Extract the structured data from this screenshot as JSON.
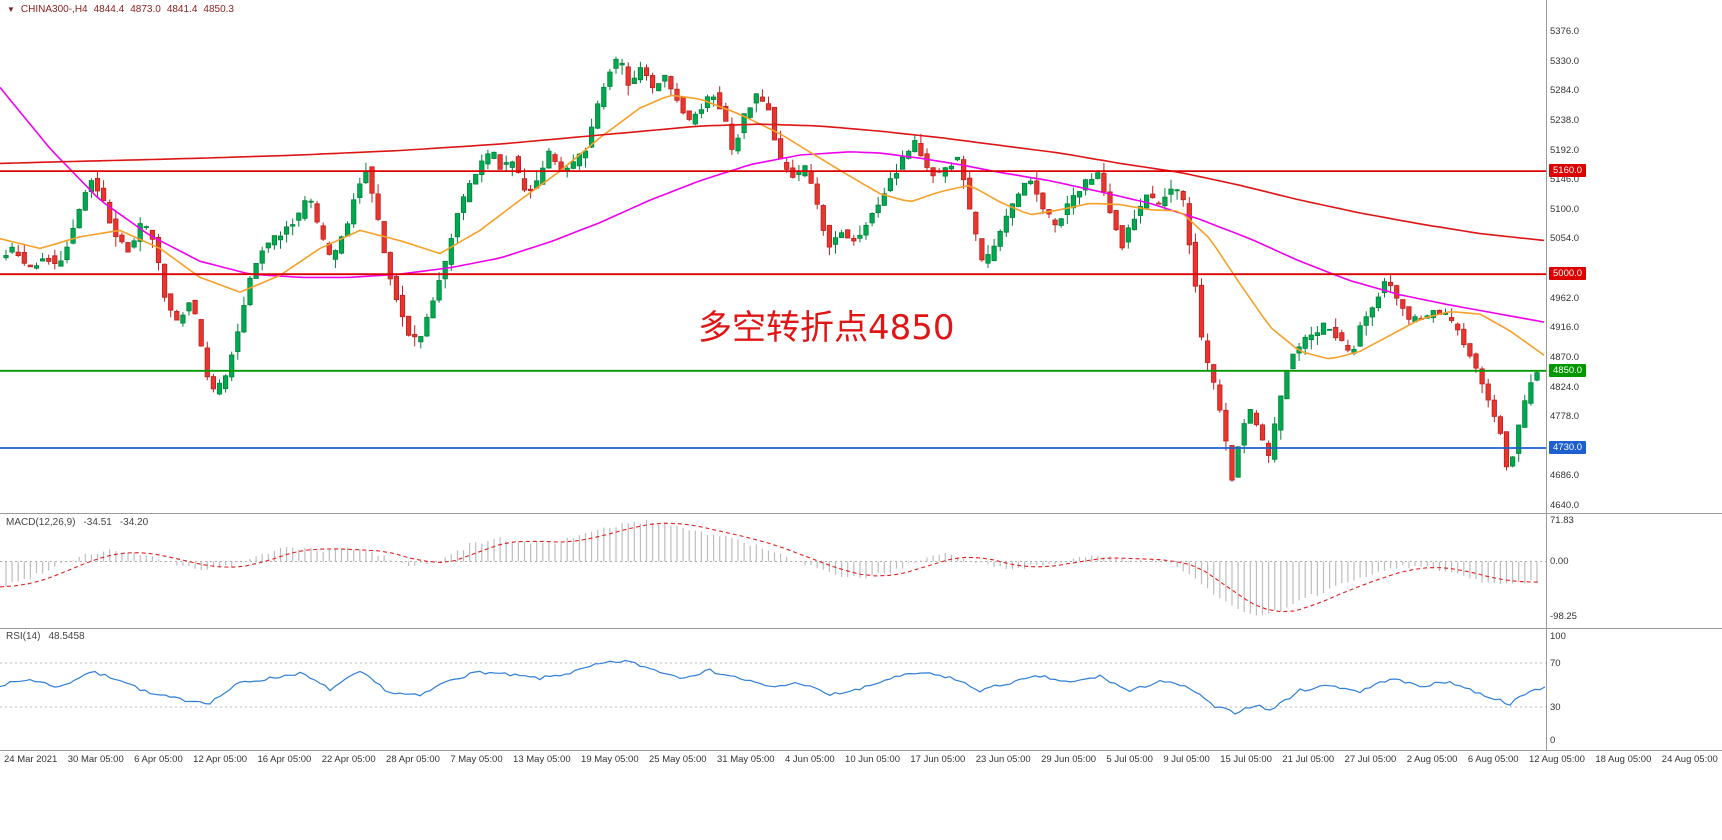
{
  "symbol_bar": {
    "dropdown_icon": "▼",
    "symbol": "CHINA300-,H4",
    "open": "4844.4",
    "high": "4873.0",
    "low": "4841.4",
    "close": "4850.3"
  },
  "annotation": {
    "text": "多空转折点4850",
    "color": "#e01515"
  },
  "price_axis": {
    "min": 4640,
    "max": 5376,
    "labels": [
      "5376.0",
      "5330.0",
      "5284.0",
      "5238.0",
      "5192.0",
      "5146.0",
      "5100.0",
      "5054.0",
      "4962.0",
      "4916.0",
      "4870.0",
      "4824.0",
      "4778.0",
      "4686.0",
      "4640.0"
    ]
  },
  "levels": [
    {
      "label": "5160.0",
      "value": 5160,
      "color": "#dd0000"
    },
    {
      "label": "5000.0",
      "value": 5000,
      "color": "#dd0000"
    },
    {
      "label": "4850.0",
      "value": 4850,
      "color": "#009a00"
    },
    {
      "label": "4730.0",
      "value": 4730,
      "color": "#1e5fd0"
    }
  ],
  "time_axis": {
    "labels": [
      "24 Mar 2021",
      "30 Mar 05:00",
      "6 Apr 05:00",
      "12 Apr 05:00",
      "16 Apr 05:00",
      "22 Apr 05:00",
      "28 Apr 05:00",
      "7 May 05:00",
      "13 May 05:00",
      "19 May 05:00",
      "25 May 05:00",
      "31 May 05:00",
      "4 Jun 05:00",
      "10 Jun 05:00",
      "17 Jun 05:00",
      "23 Jun 05:00",
      "29 Jun 05:00",
      "5 Jul 05:00",
      "9 Jul 05:00",
      "15 Jul 05:00",
      "21 Jul 05:00",
      "27 Jul 05:00",
      "2 Aug 05:00",
      "6 Aug 05:00",
      "12 Aug 05:00",
      "18 Aug 05:00",
      "24 Aug 05:00"
    ]
  },
  "indicators": {
    "macd": {
      "name": "MACD(12,26,9)",
      "value_main": "-34.51",
      "value_signal": "-34.20",
      "range": {
        "max": 71.83,
        "min": -98.25
      },
      "axis_labels": [
        {
          "text": "71.83",
          "value": 71.83
        },
        {
          "text": "0.00",
          "value": 0
        },
        {
          "text": "-98.25",
          "value": -98.25
        }
      ]
    },
    "rsi": {
      "name": "RSI(14)",
      "value": "48.5458",
      "range": {
        "max": 100,
        "min": 0
      },
      "level_lines": [
        70,
        30
      ],
      "axis_labels": [
        {
          "text": "100",
          "value": 100
        },
        {
          "text": "70",
          "value": 70
        },
        {
          "text": "30",
          "value": 30
        },
        {
          "text": "0",
          "value": 0
        }
      ]
    }
  },
  "chart_data": {
    "type": "candlestick",
    "title": "CHINA300-,H4",
    "timeframe": "H4",
    "ylim": [
      4640,
      5376
    ],
    "grid": false,
    "colors": {
      "up": "#00a84f",
      "up_stroke": "#00823b",
      "down": "#e8352e",
      "down_stroke": "#bf1f1f",
      "macd_hist": "#bdbdbd",
      "macd_signal": "#e02020",
      "rsi_line": "#2f7ed8"
    },
    "price_path": [
      [
        0,
        5020
      ],
      [
        18,
        5040
      ],
      [
        32,
        5005
      ],
      [
        48,
        5030
      ],
      [
        62,
        5010
      ],
      [
        78,
        5080
      ],
      [
        92,
        5150
      ],
      [
        104,
        5120
      ],
      [
        118,
        5060
      ],
      [
        132,
        5035
      ],
      [
        145,
        5085
      ],
      [
        158,
        5045
      ],
      [
        170,
        4950
      ],
      [
        182,
        4925
      ],
      [
        194,
        4965
      ],
      [
        205,
        4880
      ],
      [
        215,
        4815
      ],
      [
        228,
        4835
      ],
      [
        240,
        4905
      ],
      [
        252,
        4990
      ],
      [
        265,
        5040
      ],
      [
        278,
        5055
      ],
      [
        290,
        5075
      ],
      [
        302,
        5090
      ],
      [
        312,
        5125
      ],
      [
        322,
        5070
      ],
      [
        334,
        5020
      ],
      [
        348,
        5070
      ],
      [
        360,
        5130
      ],
      [
        368,
        5170
      ],
      [
        378,
        5105
      ],
      [
        390,
        5010
      ],
      [
        402,
        4950
      ],
      [
        412,
        4905
      ],
      [
        422,
        4895
      ],
      [
        435,
        4955
      ],
      [
        448,
        5015
      ],
      [
        460,
        5095
      ],
      [
        472,
        5135
      ],
      [
        484,
        5175
      ],
      [
        495,
        5190
      ],
      [
        505,
        5160
      ],
      [
        515,
        5180
      ],
      [
        528,
        5125
      ],
      [
        540,
        5140
      ],
      [
        552,
        5190
      ],
      [
        565,
        5160
      ],
      [
        578,
        5175
      ],
      [
        590,
        5195
      ],
      [
        602,
        5270
      ],
      [
        612,
        5315
      ],
      [
        622,
        5335
      ],
      [
        632,
        5295
      ],
      [
        645,
        5320
      ],
      [
        655,
        5285
      ],
      [
        668,
        5310
      ],
      [
        680,
        5270
      ],
      [
        692,
        5235
      ],
      [
        705,
        5260
      ],
      [
        715,
        5285
      ],
      [
        725,
        5255
      ],
      [
        736,
        5190
      ],
      [
        748,
        5250
      ],
      [
        760,
        5280
      ],
      [
        772,
        5255
      ],
      [
        782,
        5180
      ],
      [
        795,
        5150
      ],
      [
        808,
        5165
      ],
      [
        820,
        5110
      ],
      [
        832,
        5040
      ],
      [
        845,
        5065
      ],
      [
        858,
        5050
      ],
      [
        870,
        5080
      ],
      [
        884,
        5120
      ],
      [
        896,
        5150
      ],
      [
        908,
        5185
      ],
      [
        918,
        5205
      ],
      [
        928,
        5175
      ],
      [
        940,
        5150
      ],
      [
        952,
        5170
      ],
      [
        962,
        5180
      ],
      [
        974,
        5090
      ],
      [
        986,
        5015
      ],
      [
        998,
        5040
      ],
      [
        1010,
        5090
      ],
      [
        1022,
        5125
      ],
      [
        1035,
        5150
      ],
      [
        1048,
        5095
      ],
      [
        1060,
        5075
      ],
      [
        1075,
        5120
      ],
      [
        1088,
        5140
      ],
      [
        1100,
        5160
      ],
      [
        1112,
        5105
      ],
      [
        1125,
        5045
      ],
      [
        1138,
        5090
      ],
      [
        1150,
        5120
      ],
      [
        1163,
        5108
      ],
      [
        1175,
        5135
      ],
      [
        1186,
        5115
      ],
      [
        1196,
        5010
      ],
      [
        1206,
        4880
      ],
      [
        1216,
        4835
      ],
      [
        1226,
        4770
      ],
      [
        1232,
        4705
      ],
      [
        1236,
        4672
      ],
      [
        1242,
        4740
      ],
      [
        1252,
        4790
      ],
      [
        1262,
        4755
      ],
      [
        1272,
        4712
      ],
      [
        1282,
        4800
      ],
      [
        1294,
        4875
      ],
      [
        1306,
        4895
      ],
      [
        1318,
        4905
      ],
      [
        1330,
        4925
      ],
      [
        1342,
        4900
      ],
      [
        1354,
        4872
      ],
      [
        1366,
        4930
      ],
      [
        1378,
        4952
      ],
      [
        1390,
        5000
      ],
      [
        1400,
        4960
      ],
      [
        1412,
        4930
      ],
      [
        1424,
        4930
      ],
      [
        1436,
        4940
      ],
      [
        1448,
        4935
      ],
      [
        1460,
        4920
      ],
      [
        1470,
        4885
      ],
      [
        1480,
        4855
      ],
      [
        1492,
        4805
      ],
      [
        1502,
        4765
      ],
      [
        1508,
        4705
      ],
      [
        1512,
        4688
      ],
      [
        1518,
        4735
      ],
      [
        1526,
        4795
      ],
      [
        1534,
        4835
      ],
      [
        1540,
        4852
      ]
    ],
    "moving_averages": [
      {
        "name": "ma-slow-magenta",
        "color": "#f000f0",
        "points": [
          [
            0,
            5290
          ],
          [
            50,
            5195
          ],
          [
            100,
            5115
          ],
          [
            150,
            5060
          ],
          [
            200,
            5020
          ],
          [
            250,
            5000
          ],
          [
            300,
            4995
          ],
          [
            350,
            4995
          ],
          [
            400,
            5000
          ],
          [
            450,
            5010
          ],
          [
            500,
            5025
          ],
          [
            550,
            5050
          ],
          [
            600,
            5080
          ],
          [
            650,
            5115
          ],
          [
            700,
            5145
          ],
          [
            750,
            5170
          ],
          [
            800,
            5185
          ],
          [
            850,
            5190
          ],
          [
            880,
            5188
          ],
          [
            920,
            5180
          ],
          [
            960,
            5170
          ],
          [
            1000,
            5158
          ],
          [
            1050,
            5145
          ],
          [
            1100,
            5128
          ],
          [
            1150,
            5110
          ],
          [
            1200,
            5085
          ],
          [
            1250,
            5055
          ],
          [
            1300,
            5020
          ],
          [
            1350,
            4990
          ],
          [
            1400,
            4968
          ],
          [
            1450,
            4952
          ],
          [
            1500,
            4938
          ],
          [
            1546,
            4925
          ]
        ]
      },
      {
        "name": "ma-medium-orange",
        "color": "#f7a028",
        "points": [
          [
            0,
            5055
          ],
          [
            40,
            5040
          ],
          [
            80,
            5058
          ],
          [
            120,
            5068
          ],
          [
            160,
            5040
          ],
          [
            200,
            4995
          ],
          [
            240,
            4972
          ],
          [
            280,
            4998
          ],
          [
            320,
            5040
          ],
          [
            360,
            5068
          ],
          [
            400,
            5052
          ],
          [
            440,
            5032
          ],
          [
            480,
            5068
          ],
          [
            520,
            5115
          ],
          [
            560,
            5160
          ],
          [
            600,
            5212
          ],
          [
            640,
            5258
          ],
          [
            670,
            5278
          ],
          [
            700,
            5272
          ],
          [
            740,
            5248
          ],
          [
            780,
            5218
          ],
          [
            820,
            5180
          ],
          [
            850,
            5152
          ],
          [
            880,
            5125
          ],
          [
            910,
            5112
          ],
          [
            940,
            5128
          ],
          [
            970,
            5138
          ],
          [
            1000,
            5112
          ],
          [
            1030,
            5092
          ],
          [
            1060,
            5100
          ],
          [
            1090,
            5110
          ],
          [
            1120,
            5108
          ],
          [
            1150,
            5100
          ],
          [
            1180,
            5098
          ],
          [
            1210,
            5055
          ],
          [
            1240,
            4985
          ],
          [
            1270,
            4918
          ],
          [
            1300,
            4880
          ],
          [
            1330,
            4868
          ],
          [
            1360,
            4880
          ],
          [
            1390,
            4905
          ],
          [
            1420,
            4930
          ],
          [
            1450,
            4942
          ],
          [
            1480,
            4938
          ],
          [
            1510,
            4912
          ],
          [
            1546,
            4872
          ]
        ]
      },
      {
        "name": "ma-long-red",
        "color": "#dd1515",
        "points": [
          [
            0,
            5172
          ],
          [
            100,
            5176
          ],
          [
            200,
            5180
          ],
          [
            300,
            5185
          ],
          [
            400,
            5192
          ],
          [
            500,
            5202
          ],
          [
            600,
            5216
          ],
          [
            700,
            5230
          ],
          [
            760,
            5233
          ],
          [
            820,
            5230
          ],
          [
            880,
            5222
          ],
          [
            940,
            5212
          ],
          [
            1000,
            5200
          ],
          [
            1060,
            5188
          ],
          [
            1120,
            5172
          ],
          [
            1180,
            5158
          ],
          [
            1240,
            5138
          ],
          [
            1300,
            5115
          ],
          [
            1360,
            5095
          ],
          [
            1420,
            5078
          ],
          [
            1480,
            5063
          ],
          [
            1546,
            5052
          ]
        ]
      }
    ],
    "macd_path": [
      [
        0,
        -45
      ],
      [
        25,
        -32
      ],
      [
        50,
        -12
      ],
      [
        80,
        10
      ],
      [
        110,
        20
      ],
      [
        140,
        12
      ],
      [
        170,
        -2
      ],
      [
        200,
        -14
      ],
      [
        230,
        -8
      ],
      [
        260,
        10
      ],
      [
        290,
        28
      ],
      [
        320,
        18
      ],
      [
        350,
        24
      ],
      [
        380,
        12
      ],
      [
        410,
        -8
      ],
      [
        440,
        2
      ],
      [
        470,
        30
      ],
      [
        500,
        40
      ],
      [
        530,
        32
      ],
      [
        560,
        36
      ],
      [
        590,
        50
      ],
      [
        620,
        66
      ],
      [
        650,
        71
      ],
      [
        680,
        62
      ],
      [
        710,
        48
      ],
      [
        740,
        38
      ],
      [
        770,
        18
      ],
      [
        800,
        -2
      ],
      [
        830,
        -22
      ],
      [
        860,
        -30
      ],
      [
        890,
        -18
      ],
      [
        920,
        2
      ],
      [
        950,
        14
      ],
      [
        980,
        -2
      ],
      [
        1010,
        -14
      ],
      [
        1040,
        -6
      ],
      [
        1070,
        4
      ],
      [
        1100,
        10
      ],
      [
        1130,
        0
      ],
      [
        1160,
        6
      ],
      [
        1190,
        -22
      ],
      [
        1220,
        -68
      ],
      [
        1250,
        -95
      ],
      [
        1280,
        -88
      ],
      [
        1310,
        -62
      ],
      [
        1340,
        -42
      ],
      [
        1370,
        -22
      ],
      [
        1400,
        -8
      ],
      [
        1430,
        -10
      ],
      [
        1460,
        -24
      ],
      [
        1490,
        -38
      ],
      [
        1520,
        -36
      ],
      [
        1546,
        -34.5
      ]
    ],
    "rsi_path": [
      [
        0,
        50
      ],
      [
        30,
        55
      ],
      [
        60,
        48
      ],
      [
        90,
        62
      ],
      [
        120,
        55
      ],
      [
        150,
        42
      ],
      [
        180,
        37
      ],
      [
        210,
        34
      ],
      [
        240,
        52
      ],
      [
        270,
        56
      ],
      [
        300,
        61
      ],
      [
        330,
        46
      ],
      [
        360,
        62
      ],
      [
        390,
        43
      ],
      [
        420,
        40
      ],
      [
        450,
        55
      ],
      [
        480,
        62
      ],
      [
        510,
        59
      ],
      [
        540,
        56
      ],
      [
        570,
        61
      ],
      [
        600,
        69
      ],
      [
        625,
        72
      ],
      [
        650,
        65
      ],
      [
        680,
        57
      ],
      [
        710,
        63
      ],
      [
        740,
        56
      ],
      [
        770,
        48
      ],
      [
        800,
        52
      ],
      [
        830,
        41
      ],
      [
        860,
        46
      ],
      [
        890,
        56
      ],
      [
        920,
        61
      ],
      [
        950,
        57
      ],
      [
        980,
        45
      ],
      [
        1010,
        52
      ],
      [
        1040,
        58
      ],
      [
        1070,
        52
      ],
      [
        1100,
        58
      ],
      [
        1130,
        44
      ],
      [
        1160,
        54
      ],
      [
        1190,
        47
      ],
      [
        1215,
        30
      ],
      [
        1235,
        25
      ],
      [
        1255,
        32
      ],
      [
        1270,
        27
      ],
      [
        1300,
        45
      ],
      [
        1330,
        50
      ],
      [
        1360,
        44
      ],
      [
        1390,
        56
      ],
      [
        1420,
        49
      ],
      [
        1450,
        53
      ],
      [
        1480,
        42
      ],
      [
        1510,
        33
      ],
      [
        1530,
        44
      ],
      [
        1546,
        48.5
      ]
    ]
  }
}
